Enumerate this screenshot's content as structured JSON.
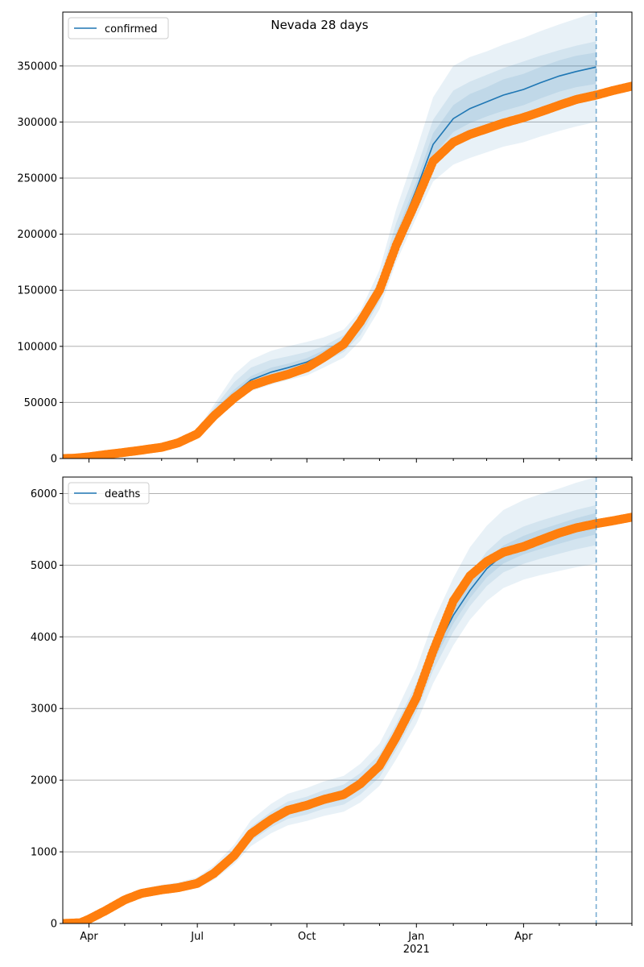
{
  "figure_title": "Nevada 28 days",
  "colors": {
    "model": "#1f77b4",
    "observed": "#ff7f0e",
    "band": "#1f77b4",
    "grid": "#b0b0b0",
    "axis": "#000000"
  },
  "x_axis": {
    "tick_labels": [
      "Apr",
      "Jul",
      "Oct",
      "Jan",
      "Apr"
    ],
    "tick_dates": [
      "2020-04-01",
      "2020-07-01",
      "2020-10-01",
      "2021-01-01",
      "2021-04-01"
    ],
    "year_label": "2021",
    "minor_tick_dates": [
      "2020-05-01",
      "2020-06-01",
      "2020-08-01",
      "2020-09-01",
      "2020-11-01",
      "2020-12-01",
      "2021-02-01",
      "2021-03-01",
      "2021-05-01",
      "2021-06-01",
      "2021-07-01"
    ],
    "xlim": [
      "2020-03-10",
      "2021-07-01"
    ]
  },
  "chart_data": [
    {
      "type": "line",
      "panel": "confirmed",
      "legend": "confirmed",
      "legend_loc": "upper left",
      "grid": "horizontal",
      "ylim": [
        0,
        398000
      ],
      "yticks": [
        0,
        50000,
        100000,
        150000,
        200000,
        250000,
        300000,
        350000
      ],
      "forecast_start": "2021-06-01",
      "model_series": {
        "x": [
          "2020-03-10",
          "2020-04-01",
          "2020-05-01",
          "2020-06-01",
          "2020-06-15",
          "2020-07-01",
          "2020-07-15",
          "2020-08-01",
          "2020-08-15",
          "2020-09-01",
          "2020-09-15",
          "2020-10-01",
          "2020-10-15",
          "2020-11-01",
          "2020-11-15",
          "2020-12-01",
          "2020-12-15",
          "2021-01-01",
          "2021-01-15",
          "2021-02-01",
          "2021-02-15",
          "2021-03-01",
          "2021-03-15",
          "2021-04-01",
          "2021-04-15",
          "2021-05-01",
          "2021-05-15",
          "2021-06-01"
        ],
        "y": [
          0,
          1500,
          5500,
          10000,
          14000,
          22000,
          40000,
          58000,
          70000,
          77000,
          81000,
          86000,
          93000,
          103000,
          120000,
          150000,
          195000,
          240000,
          280000,
          303000,
          312000,
          318000,
          324000,
          329000,
          335000,
          341000,
          345000,
          349000
        ]
      },
      "bands": [
        {
          "level": "outer",
          "lower": [
            0,
            1200,
            4800,
            9000,
            12500,
            19000,
            33000,
            50000,
            60000,
            66000,
            70000,
            74000,
            81000,
            90000,
            105000,
            133000,
            175000,
            215000,
            247000,
            262000,
            268000,
            273000,
            278000,
            282000,
            287000,
            292000,
            296000,
            300000
          ],
          "upper": [
            0,
            1800,
            6300,
            11200,
            15800,
            25500,
            48000,
            75000,
            88000,
            96000,
            100000,
            104000,
            108000,
            115000,
            132000,
            168000,
            222000,
            275000,
            322000,
            350000,
            358000,
            363000,
            369000,
            375000,
            381000,
            387000,
            392000,
            398000
          ]
        },
        {
          "level": "middle",
          "lower": [
            0,
            1300,
            5000,
            9400,
            13000,
            20000,
            35000,
            53000,
            64000,
            70000,
            74000,
            79000,
            86000,
            95000,
            110000,
            140000,
            183000,
            226000,
            260000,
            280000,
            287000,
            292000,
            297000,
            302000,
            308000,
            313000,
            317000,
            320000
          ],
          "upper": [
            0,
            1700,
            6000,
            10700,
            15200,
            24000,
            45000,
            68000,
            81000,
            88000,
            91000,
            95000,
            100000,
            110000,
            127000,
            160000,
            210000,
            258000,
            302000,
            328000,
            336000,
            342000,
            348000,
            354000,
            359000,
            364000,
            368000,
            372000
          ]
        },
        {
          "level": "inner",
          "lower": [
            0,
            1400,
            5200,
            9700,
            13500,
            21000,
            37500,
            55500,
            67000,
            73500,
            77500,
            82500,
            89500,
            99000,
            115000,
            145000,
            189000,
            233000,
            270000,
            291000,
            299000,
            305000,
            310000,
            315000,
            321000,
            327000,
            331000,
            334000
          ],
          "upper": [
            0,
            1600,
            5800,
            10300,
            14500,
            23000,
            42500,
            61500,
            73500,
            81000,
            84500,
            89500,
            96500,
            107000,
            125000,
            155000,
            201000,
            247000,
            290000,
            315000,
            325000,
            331000,
            338000,
            343000,
            349000,
            355000,
            359000,
            362000
          ]
        }
      ],
      "observed_series": {
        "x": [
          "2020-03-10",
          "2020-03-20",
          "2020-04-01",
          "2020-04-15",
          "2020-05-01",
          "2020-05-15",
          "2020-06-01",
          "2020-06-15",
          "2020-07-01",
          "2020-07-15",
          "2020-08-01",
          "2020-08-15",
          "2020-09-01",
          "2020-09-15",
          "2020-10-01",
          "2020-10-15",
          "2020-11-01",
          "2020-11-15",
          "2020-12-01",
          "2020-12-15",
          "2021-01-01",
          "2021-01-15",
          "2021-02-01",
          "2021-02-15",
          "2021-03-01",
          "2021-03-15",
          "2021-04-01",
          "2021-04-15",
          "2021-05-01",
          "2021-05-15",
          "2021-06-01",
          "2021-06-15",
          "2021-07-01"
        ],
        "y": [
          0,
          300,
          1500,
          3500,
          5500,
          7500,
          10000,
          14000,
          22000,
          38000,
          54000,
          65000,
          71000,
          75000,
          81000,
          90000,
          102000,
          122000,
          150000,
          190000,
          230000,
          265000,
          282000,
          289000,
          294000,
          299000,
          304000,
          309000,
          315000,
          320000,
          324000,
          328000,
          332000
        ]
      }
    },
    {
      "type": "line",
      "panel": "deaths",
      "legend": "deaths",
      "legend_loc": "upper left",
      "grid": "horizontal",
      "ylim": [
        0,
        6230
      ],
      "yticks": [
        0,
        1000,
        2000,
        3000,
        4000,
        5000,
        6000
      ],
      "forecast_start": "2021-06-01",
      "model_series": {
        "x": [
          "2020-03-10",
          "2020-04-01",
          "2020-04-15",
          "2020-05-01",
          "2020-05-15",
          "2020-06-01",
          "2020-06-15",
          "2020-07-01",
          "2020-07-15",
          "2020-08-01",
          "2020-08-15",
          "2020-09-01",
          "2020-09-15",
          "2020-10-01",
          "2020-10-15",
          "2020-11-01",
          "2020-11-15",
          "2020-12-01",
          "2020-12-15",
          "2021-01-01",
          "2021-01-15",
          "2021-02-01",
          "2021-02-15",
          "2021-03-01",
          "2021-03-15",
          "2021-04-01",
          "2021-04-15",
          "2021-05-01",
          "2021-05-15",
          "2021-06-01"
        ],
        "y": [
          0,
          60,
          180,
          330,
          420,
          470,
          500,
          560,
          700,
          950,
          1250,
          1450,
          1580,
          1650,
          1730,
          1800,
          1950,
          2200,
          2600,
          3150,
          3750,
          4300,
          4650,
          4950,
          5150,
          5280,
          5360,
          5440,
          5510,
          5580
        ]
      },
      "bands": [
        {
          "level": "outer",
          "lower": [
            0,
            40,
            150,
            290,
            370,
            410,
            440,
            490,
            610,
            830,
            1080,
            1260,
            1370,
            1430,
            1500,
            1560,
            1690,
            1920,
            2290,
            2790,
            3350,
            3880,
            4240,
            4500,
            4680,
            4800,
            4860,
            4920,
            4970,
            5020
          ],
          "upper": [
            0,
            80,
            215,
            375,
            480,
            540,
            575,
            645,
            810,
            1100,
            1440,
            1670,
            1810,
            1890,
            1980,
            2060,
            2230,
            2510,
            2960,
            3560,
            4210,
            4820,
            5250,
            5550,
            5770,
            5910,
            5990,
            6070,
            6150,
            6230
          ]
        },
        {
          "level": "middle",
          "lower": [
            0,
            48,
            160,
            305,
            390,
            435,
            465,
            520,
            650,
            880,
            1150,
            1340,
            1460,
            1520,
            1600,
            1660,
            1800,
            2040,
            2420,
            2950,
            3530,
            4070,
            4430,
            4710,
            4900,
            5020,
            5090,
            5160,
            5220,
            5280
          ],
          "upper": [
            0,
            72,
            200,
            355,
            450,
            505,
            535,
            600,
            750,
            1020,
            1350,
            1560,
            1700,
            1770,
            1860,
            1940,
            2100,
            2360,
            2780,
            3350,
            3970,
            4530,
            4870,
            5190,
            5400,
            5540,
            5620,
            5700,
            5770,
            5840
          ]
        },
        {
          "level": "inner",
          "lower": [
            0,
            54,
            170,
            318,
            405,
            452,
            482,
            540,
            675,
            915,
            1200,
            1395,
            1520,
            1585,
            1665,
            1730,
            1875,
            2120,
            2510,
            3050,
            3640,
            4185,
            4540,
            4830,
            5025,
            5150,
            5225,
            5300,
            5365,
            5430
          ],
          "upper": [
            0,
            66,
            190,
            342,
            435,
            488,
            518,
            580,
            725,
            985,
            1300,
            1505,
            1640,
            1715,
            1795,
            1870,
            2025,
            2280,
            2690,
            3250,
            3860,
            4415,
            4760,
            5070,
            5275,
            5410,
            5495,
            5580,
            5655,
            5730
          ]
        }
      ],
      "observed_series": {
        "x": [
          "2020-03-10",
          "2020-03-25",
          "2020-04-01",
          "2020-04-15",
          "2020-05-01",
          "2020-05-15",
          "2020-06-01",
          "2020-06-15",
          "2020-07-01",
          "2020-07-15",
          "2020-08-01",
          "2020-08-15",
          "2020-09-01",
          "2020-09-15",
          "2020-10-01",
          "2020-10-15",
          "2020-11-01",
          "2020-11-15",
          "2020-12-01",
          "2020-12-15",
          "2021-01-01",
          "2021-01-15",
          "2021-02-01",
          "2021-02-15",
          "2021-03-01",
          "2021-03-15",
          "2021-04-01",
          "2021-04-15",
          "2021-05-01",
          "2021-05-15",
          "2021-06-01",
          "2021-06-15",
          "2021-07-01"
        ],
        "y": [
          0,
          10,
          60,
          180,
          330,
          420,
          470,
          500,
          560,
          700,
          950,
          1250,
          1450,
          1580,
          1650,
          1730,
          1800,
          1950,
          2200,
          2600,
          3150,
          3800,
          4500,
          4850,
          5050,
          5180,
          5260,
          5350,
          5450,
          5520,
          5580,
          5620,
          5670
        ]
      }
    }
  ]
}
